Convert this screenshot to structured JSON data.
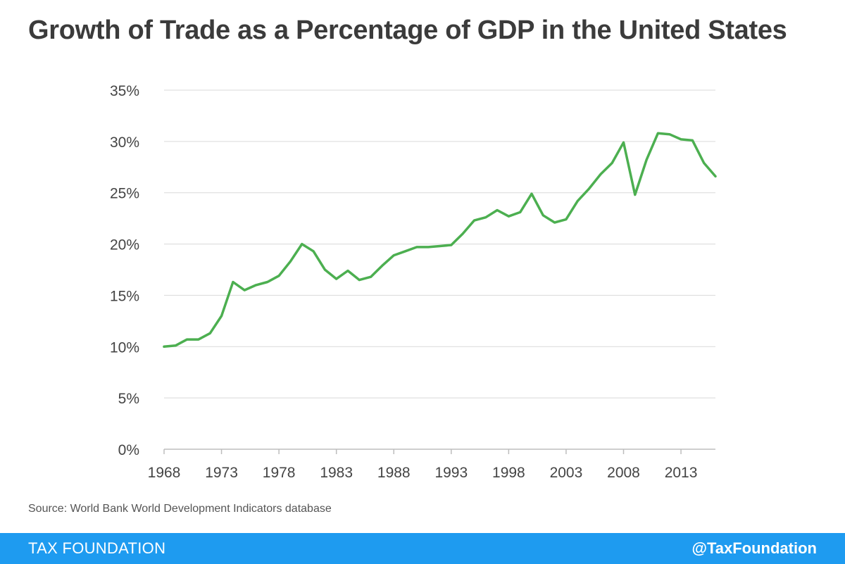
{
  "title": "Growth of Trade as a Percentage of GDP in the United States",
  "source": "Source: World Bank World Development Indicators database",
  "footer": {
    "brand": "TAX FOUNDATION",
    "handle": "@TaxFoundation"
  },
  "colors": {
    "line": "#4caf50",
    "footer": "#1e9bf0",
    "grid": "#d9d9d9"
  },
  "chart_data": {
    "type": "line",
    "title": "Growth of Trade as a Percentage of GDP in the United States",
    "xlabel": "",
    "ylabel": "",
    "xlim": [
      1968,
      2016
    ],
    "ylim": [
      0,
      35
    ],
    "grid": true,
    "yticks": [
      0,
      5,
      10,
      15,
      20,
      25,
      30,
      35
    ],
    "ytick_labels": [
      "0%",
      "5%",
      "10%",
      "15%",
      "20%",
      "25%",
      "30%",
      "35%"
    ],
    "xticks": [
      1968,
      1973,
      1978,
      1983,
      1988,
      1993,
      1998,
      2003,
      2008,
      2013
    ],
    "xtick_labels": [
      "1968",
      "1973",
      "1978",
      "1983",
      "1988",
      "1993",
      "1998",
      "2003",
      "2008",
      "2013"
    ],
    "series": [
      {
        "name": "Trade as % of GDP",
        "x": [
          1968,
          1969,
          1970,
          1971,
          1972,
          1973,
          1974,
          1975,
          1976,
          1977,
          1978,
          1979,
          1980,
          1981,
          1982,
          1983,
          1984,
          1985,
          1986,
          1987,
          1988,
          1989,
          1990,
          1991,
          1992,
          1993,
          1994,
          1995,
          1996,
          1997,
          1998,
          1999,
          2000,
          2001,
          2002,
          2003,
          2004,
          2005,
          2006,
          2007,
          2008,
          2009,
          2010,
          2011,
          2012,
          2013,
          2014,
          2015,
          2016
        ],
        "values": [
          10.0,
          10.1,
          10.7,
          10.7,
          11.3,
          13.0,
          16.3,
          15.5,
          16.0,
          16.3,
          16.9,
          18.3,
          20.0,
          19.3,
          17.5,
          16.6,
          17.4,
          16.5,
          16.8,
          17.9,
          18.9,
          19.3,
          19.7,
          19.7,
          19.8,
          19.9,
          21.0,
          22.3,
          22.6,
          23.3,
          22.7,
          23.1,
          24.9,
          22.8,
          22.1,
          22.4,
          24.2,
          25.4,
          26.8,
          27.9,
          29.9,
          24.8,
          28.2,
          30.8,
          30.7,
          30.2,
          30.1,
          27.9,
          26.6
        ]
      }
    ]
  }
}
